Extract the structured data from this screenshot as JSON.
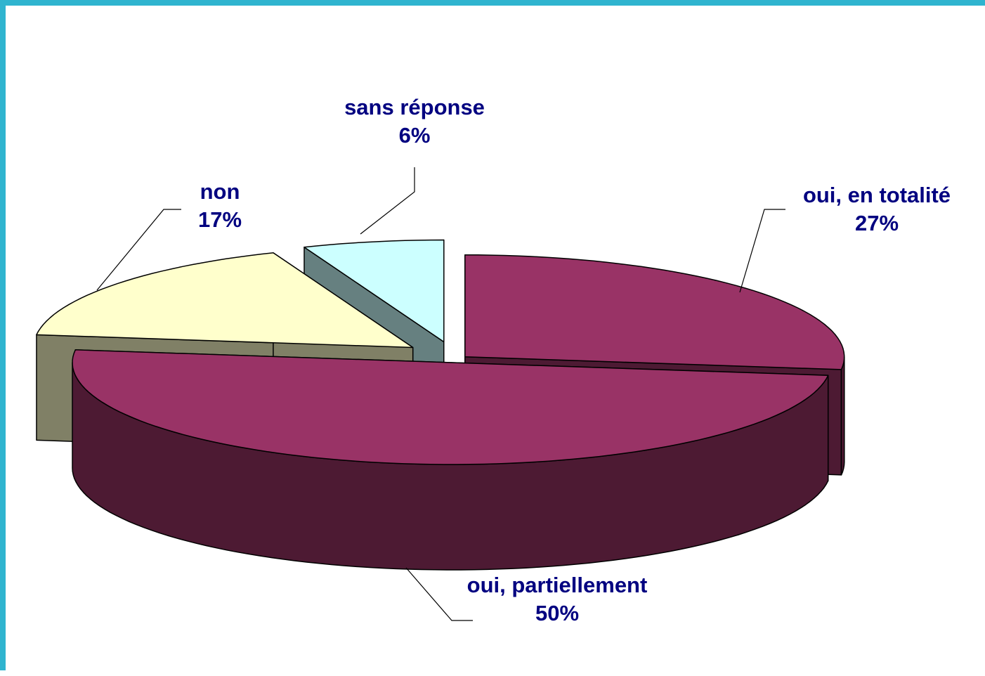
{
  "chart_data": {
    "type": "pie",
    "categories": [
      "oui, en totalité",
      "oui, partiellement",
      "non",
      "sans réponse"
    ],
    "values": [
      27,
      50,
      17,
      6
    ],
    "value_labels": [
      "27%",
      "50%",
      "17%",
      "6%"
    ],
    "colors": [
      "#993366",
      "#993366",
      "#ffffcc",
      "#ccffff"
    ]
  }
}
